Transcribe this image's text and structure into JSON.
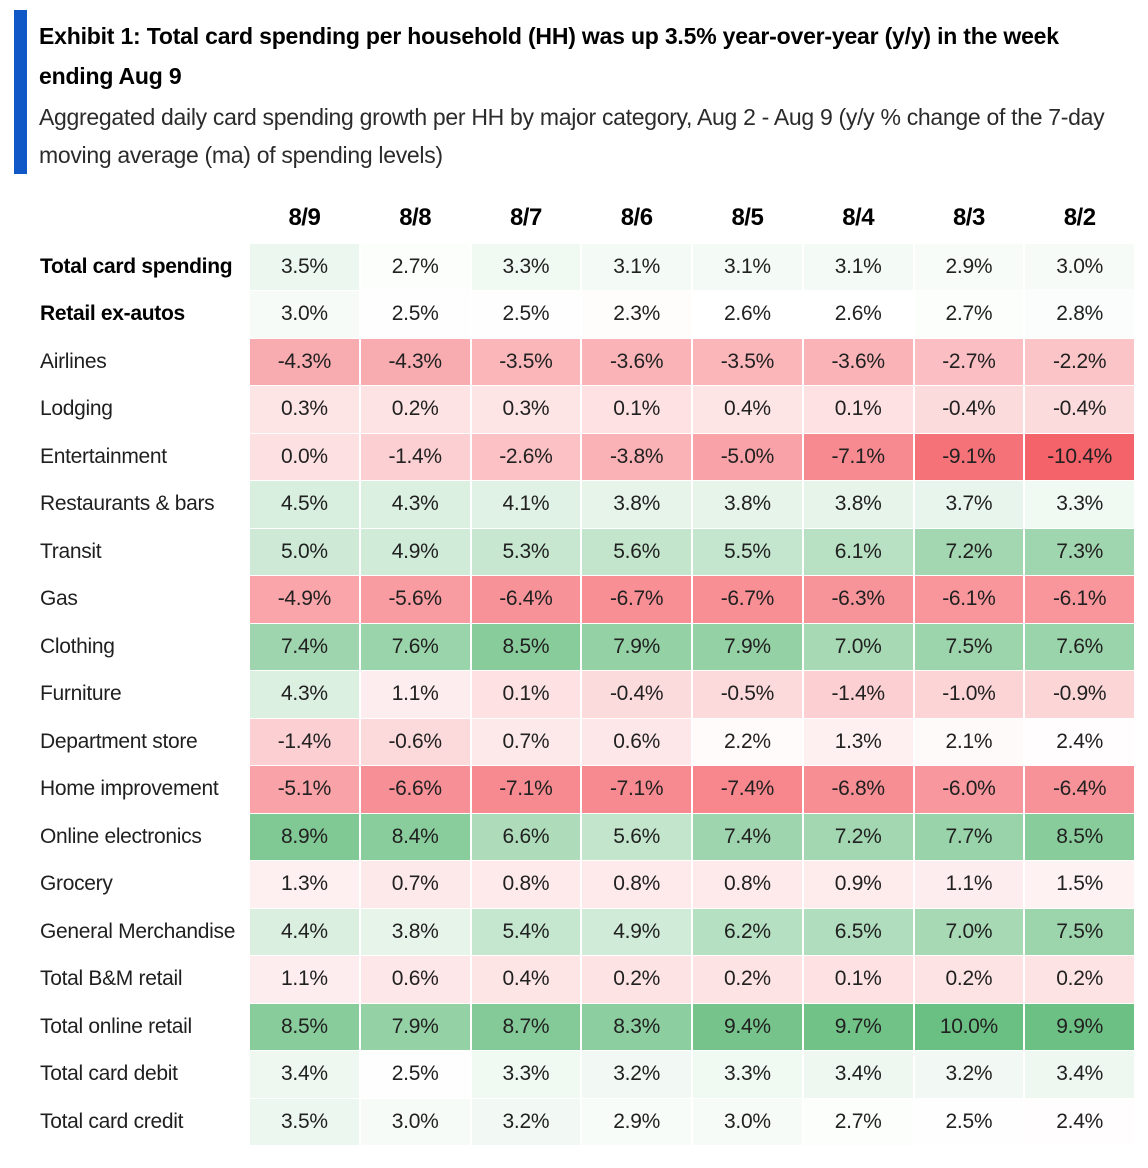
{
  "header": {
    "exhibit_title": "Exhibit 1: Total card spending per household (HH) was up 3.5% year-over-year (y/y) in the week ending Aug 9",
    "exhibit_subtitle": "Aggregated daily card spending growth per HH by major category, Aug 2 - Aug 9 (y/y % change of the 7-day moving average (ma) of spending levels)",
    "accent_bar_color": "#1057c8"
  },
  "chart_data": {
    "type": "heatmap",
    "value_format": "percent_one_decimal",
    "columns": [
      "8/9",
      "8/8",
      "8/7",
      "8/6",
      "8/5",
      "8/4",
      "8/3",
      "8/2"
    ],
    "rows": [
      {
        "label": "Total card spending",
        "bold": true,
        "values": [
          3.5,
          2.7,
          3.3,
          3.1,
          3.1,
          3.1,
          2.9,
          3.0
        ]
      },
      {
        "label": "Retail ex-autos",
        "bold": true,
        "values": [
          3.0,
          2.5,
          2.5,
          2.3,
          2.6,
          2.6,
          2.7,
          2.8
        ]
      },
      {
        "label": "Airlines",
        "bold": false,
        "values": [
          -4.3,
          -4.3,
          -3.5,
          -3.6,
          -3.5,
          -3.6,
          -2.7,
          -2.2
        ]
      },
      {
        "label": "Lodging",
        "bold": false,
        "values": [
          0.3,
          0.2,
          0.3,
          0.1,
          0.4,
          0.1,
          -0.4,
          -0.4
        ]
      },
      {
        "label": "Entertainment",
        "bold": false,
        "values": [
          0.0,
          -1.4,
          -2.6,
          -3.8,
          -5.0,
          -7.1,
          -9.1,
          -10.4
        ]
      },
      {
        "label": "Restaurants & bars",
        "bold": false,
        "values": [
          4.5,
          4.3,
          4.1,
          3.8,
          3.8,
          3.8,
          3.7,
          3.3
        ]
      },
      {
        "label": "Transit",
        "bold": false,
        "values": [
          5.0,
          4.9,
          5.3,
          5.6,
          5.5,
          6.1,
          7.2,
          7.3
        ]
      },
      {
        "label": "Gas",
        "bold": false,
        "values": [
          -4.9,
          -5.6,
          -6.4,
          -6.7,
          -6.7,
          -6.3,
          -6.1,
          -6.1
        ]
      },
      {
        "label": "Clothing",
        "bold": false,
        "values": [
          7.4,
          7.6,
          8.5,
          7.9,
          7.9,
          7.0,
          7.5,
          7.6
        ]
      },
      {
        "label": "Furniture",
        "bold": false,
        "values": [
          4.3,
          1.1,
          0.1,
          -0.4,
          -0.5,
          -1.4,
          -1.0,
          -0.9
        ]
      },
      {
        "label": "Department store",
        "bold": false,
        "values": [
          -1.4,
          -0.6,
          0.7,
          0.6,
          2.2,
          1.3,
          2.1,
          2.4
        ]
      },
      {
        "label": "Home improvement",
        "bold": false,
        "values": [
          -5.1,
          -6.6,
          -7.1,
          -7.1,
          -7.4,
          -6.8,
          -6.0,
          -6.4
        ]
      },
      {
        "label": "Online electronics",
        "bold": false,
        "values": [
          8.9,
          8.4,
          6.6,
          5.6,
          7.4,
          7.2,
          7.7,
          8.5
        ]
      },
      {
        "label": "Grocery",
        "bold": false,
        "values": [
          1.3,
          0.7,
          0.8,
          0.8,
          0.8,
          0.9,
          1.1,
          1.5
        ]
      },
      {
        "label": "General Merchandise",
        "bold": false,
        "values": [
          4.4,
          3.8,
          5.4,
          4.9,
          6.2,
          6.5,
          7.0,
          7.5
        ]
      },
      {
        "label": "Total B&M retail",
        "bold": false,
        "values": [
          1.1,
          0.6,
          0.4,
          0.2,
          0.2,
          0.1,
          0.2,
          0.2
        ]
      },
      {
        "label": "Total online retail",
        "bold": false,
        "values": [
          8.5,
          7.9,
          8.7,
          8.3,
          9.4,
          9.7,
          10.0,
          9.9
        ]
      },
      {
        "label": "Total card debit",
        "bold": false,
        "values": [
          3.4,
          2.5,
          3.3,
          3.2,
          3.3,
          3.4,
          3.2,
          3.4
        ]
      },
      {
        "label": "Total card credit",
        "bold": false,
        "values": [
          3.5,
          3.0,
          3.2,
          2.9,
          3.0,
          2.7,
          2.5,
          2.4
        ]
      }
    ],
    "color_scale": {
      "midpoint_value": 2.55,
      "midpoint_color": "#ffffff",
      "green_end_value": 10.0,
      "green_end_color": "#6abf82",
      "red_end_value": -10.4,
      "red_end_color": "#f4626a"
    },
    "legend_position": "none",
    "grid": false
  }
}
